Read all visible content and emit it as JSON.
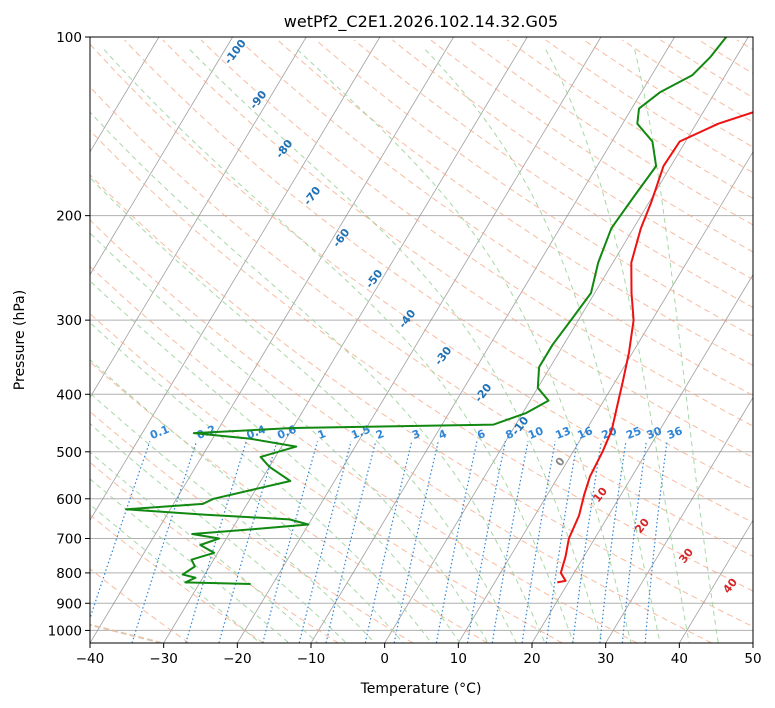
{
  "chart_data": {
    "type": "line",
    "chart_kind": "skew-T log-P diagram",
    "title": "wetPf2_C2E1.2026.102.14.32.G05",
    "xlabel": "Temperature (°C)",
    "ylabel": "Pressure (hPa)",
    "xlim": [
      -40,
      50
    ],
    "ylim": [
      1050,
      100
    ],
    "y_scale": "log",
    "x_ticks": [
      "−40",
      "−30",
      "−20",
      "−10",
      "0",
      "10",
      "20",
      "30",
      "40",
      "50"
    ],
    "y_ticks": [
      "100",
      "200",
      "300",
      "400",
      "500",
      "600",
      "700",
      "800",
      "900",
      "1000"
    ],
    "grid": true,
    "colors": {
      "temperature": "#ee1111",
      "dewpoint": "#118811",
      "isotherm": "#888888",
      "dry_adiabat": "#f4a582",
      "moist_adiabat": "#9fd39f",
      "mixing_ratio": "#2f86d6",
      "lcl_curve": "#d9b99b"
    },
    "moist_adiabat_labels": [
      "-100",
      "-90",
      "-80",
      "-70",
      "-60",
      "-50",
      "-40",
      "-30",
      "-20",
      "-10",
      "0",
      "10",
      "20",
      "30",
      "40"
    ],
    "mixing_ratio_labels": [
      "0.1",
      "0.2",
      "0.4",
      "0.6",
      "1",
      "1.5",
      "2",
      "3",
      "4",
      "6",
      "8",
      "10",
      "13",
      "16",
      "20",
      "25",
      "30",
      "36"
    ],
    "series": [
      {
        "role": "temperature",
        "points": [
          [
            18.5,
            830
          ],
          [
            19.5,
            825
          ],
          [
            18.2,
            800
          ],
          [
            17.5,
            750
          ],
          [
            16.5,
            700
          ],
          [
            16.0,
            640
          ],
          [
            15.0,
            590
          ],
          [
            14.3,
            550
          ],
          [
            14.0,
            500
          ],
          [
            13.5,
            460
          ],
          [
            12.3,
            420
          ],
          [
            11.0,
            380
          ],
          [
            9.5,
            340
          ],
          [
            7.5,
            300
          ],
          [
            5.0,
            270
          ],
          [
            2.5,
            240
          ],
          [
            1.0,
            210
          ],
          [
            0.3,
            190
          ],
          [
            -1.0,
            165
          ],
          [
            -0.8,
            150
          ],
          [
            3.0,
            140
          ],
          [
            8.0,
            132
          ],
          [
            10.5,
            125
          ],
          [
            11.0,
            115
          ],
          [
            10.7,
            108
          ],
          [
            12.0,
            104
          ],
          [
            13.5,
            100
          ]
        ]
      },
      {
        "role": "dewpoint",
        "points": [
          [
            -23,
            835
          ],
          [
            -32,
            830
          ],
          [
            -31,
            815
          ],
          [
            -33,
            805
          ],
          [
            -32,
            780
          ],
          [
            -33,
            760
          ],
          [
            -30.5,
            740
          ],
          [
            -33,
            718
          ],
          [
            -31,
            700
          ],
          [
            -35,
            688
          ],
          [
            -27,
            675
          ],
          [
            -20,
            663
          ],
          [
            -23,
            650
          ],
          [
            -35,
            638
          ],
          [
            -46,
            625
          ],
          [
            -36,
            612
          ],
          [
            -35,
            600
          ],
          [
            -26,
            560
          ],
          [
            -30,
            530
          ],
          [
            -32,
            510
          ],
          [
            -28,
            490
          ],
          [
            -35,
            475
          ],
          [
            -43,
            465
          ],
          [
            -30,
            456
          ],
          [
            -3,
            450
          ],
          [
            0.5,
            430
          ],
          [
            2.5,
            410
          ],
          [
            0,
            390
          ],
          [
            -1.5,
            360
          ],
          [
            -1.5,
            330
          ],
          [
            -1,
            300
          ],
          [
            -0.5,
            270
          ],
          [
            -2,
            240
          ],
          [
            -3,
            210
          ],
          [
            -2.5,
            185
          ],
          [
            -2,
            165
          ],
          [
            -4.5,
            150
          ],
          [
            -8,
            140
          ],
          [
            -9,
            132
          ],
          [
            -7.5,
            124
          ],
          [
            -4.5,
            116
          ],
          [
            -3.5,
            108
          ],
          [
            -3,
            100
          ]
        ]
      }
    ]
  }
}
